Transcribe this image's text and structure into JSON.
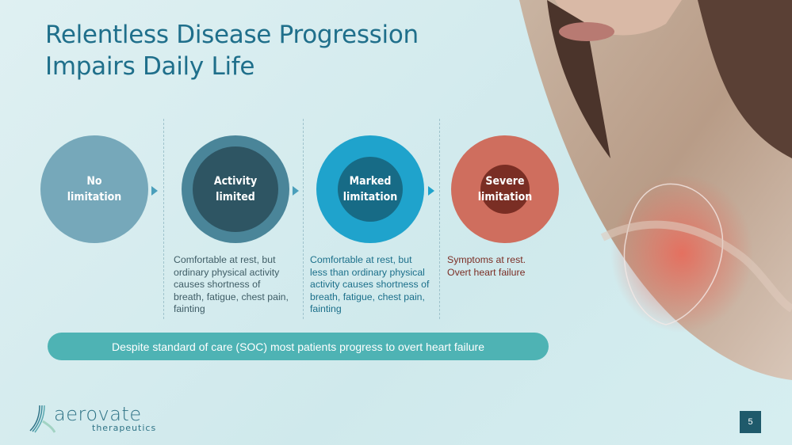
{
  "slide": {
    "title_line1": "Relentless Disease Progression",
    "title_line2": "Impairs Daily Life",
    "stages": [
      {
        "line1": "No",
        "line2": "limitation",
        "description": [],
        "color": "#76a8ba"
      },
      {
        "line1": "Activity",
        "line2": "limited",
        "description": [
          "Comfortable at rest, but",
          "ordinary physical activity",
          "causes shortness of",
          "breath, fatigue, chest pain,",
          "fainting"
        ],
        "color": "#4a8599",
        "inner_color": "#2e5563",
        "text_color": "#3f5d66"
      },
      {
        "line1": "Marked",
        "line2": "limitation",
        "description": [
          "Comfortable at rest, but",
          "less than ordinary physical",
          "activity causes shortness of",
          "breath, fatigue, chest pain,",
          "fainting"
        ],
        "color": "#1fa3cc",
        "inner_color": "#176b86",
        "text_color": "#1b6f8a"
      },
      {
        "line1": "Severe",
        "line2": "limitation",
        "description": [
          "Symptoms at rest.",
          "Overt heart failure"
        ],
        "color": "#cf6e5e",
        "inner_color": "#7a2e24",
        "text_color": "#7b2e25"
      }
    ],
    "banner": "Despite standard of care (SOC) most patients progress to overt heart failure",
    "page_number": "5",
    "logo": {
      "name": "aerovate",
      "sub": "therapeutics"
    }
  }
}
